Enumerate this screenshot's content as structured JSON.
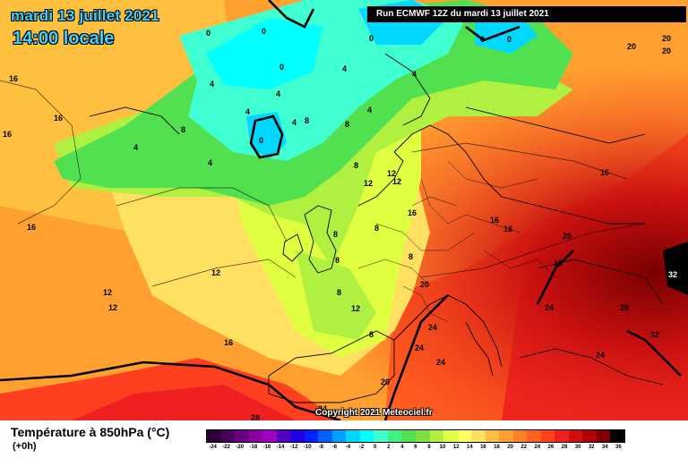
{
  "header": {
    "date": "mardi 13 juillet 2021",
    "local_time": "14:00 locale",
    "run_info": "Run ECMWF 12Z du mardi 13 juillet 2021"
  },
  "footer": {
    "title": "Température à 850hPa (°C)",
    "subtitle": "(+0h)",
    "copyright": "Copyright 2021 Meteociel.fr"
  },
  "legend": {
    "ticks": [
      "-24",
      "-22",
      "-20",
      "-18",
      "-16",
      "-14",
      "-12",
      "-10",
      "-8",
      "-6",
      "-4",
      "-2",
      "0",
      "2",
      "4",
      "6",
      "8",
      "10",
      "12",
      "14",
      "16",
      "18",
      "20",
      "22",
      "24",
      "26",
      "28",
      "30",
      "32",
      "34",
      "36"
    ],
    "colors": [
      "#2b0038",
      "#4a0060",
      "#6a0080",
      "#8a00a0",
      "#a000c0",
      "#5000c0",
      "#2000e0",
      "#0020ff",
      "#0060ff",
      "#00a0ff",
      "#00d8ff",
      "#00ffff",
      "#40ffd0",
      "#40f080",
      "#50e050",
      "#80e040",
      "#b0f040",
      "#e0ff40",
      "#ffff60",
      "#ffe060",
      "#ffc040",
      "#ffa030",
      "#ff8020",
      "#ff6020",
      "#ff4020",
      "#f02020",
      "#d01010",
      "#b00000",
      "#800000",
      "#000000"
    ]
  },
  "map_labels": [
    {
      "text": "0"
    },
    {
      "text": "0"
    },
    {
      "text": "0"
    },
    {
      "text": "0"
    },
    {
      "text": "0"
    },
    {
      "text": "0"
    },
    {
      "text": "0"
    },
    {
      "text": "4"
    },
    {
      "text": "4"
    },
    {
      "text": "4"
    },
    {
      "text": "4"
    },
    {
      "text": "4"
    },
    {
      "text": "4"
    },
    {
      "text": "4"
    },
    {
      "text": "4"
    },
    {
      "text": "4"
    },
    {
      "text": "8"
    },
    {
      "text": "8"
    },
    {
      "text": "8"
    },
    {
      "text": "8"
    },
    {
      "text": "8"
    },
    {
      "text": "8"
    },
    {
      "text": "8"
    },
    {
      "text": "8"
    },
    {
      "text": "8"
    },
    {
      "text": "8"
    },
    {
      "text": "12"
    },
    {
      "text": "12"
    },
    {
      "text": "12"
    },
    {
      "text": "12"
    },
    {
      "text": "12"
    },
    {
      "text": "12"
    },
    {
      "text": "12"
    },
    {
      "text": "16"
    },
    {
      "text": "16"
    },
    {
      "text": "16"
    },
    {
      "text": "16"
    },
    {
      "text": "16"
    },
    {
      "text": "16"
    },
    {
      "text": "16"
    },
    {
      "text": "16"
    },
    {
      "text": "16"
    },
    {
      "text": "16"
    },
    {
      "text": "20"
    },
    {
      "text": "20"
    },
    {
      "text": "20"
    },
    {
      "text": "20"
    },
    {
      "text": "20"
    },
    {
      "text": "20"
    },
    {
      "text": "24"
    },
    {
      "text": "24"
    },
    {
      "text": "24"
    },
    {
      "text": "24"
    },
    {
      "text": "24"
    },
    {
      "text": "24"
    },
    {
      "text": "28"
    },
    {
      "text": "28"
    },
    {
      "text": "32"
    },
    {
      "text": "32"
    }
  ]
}
